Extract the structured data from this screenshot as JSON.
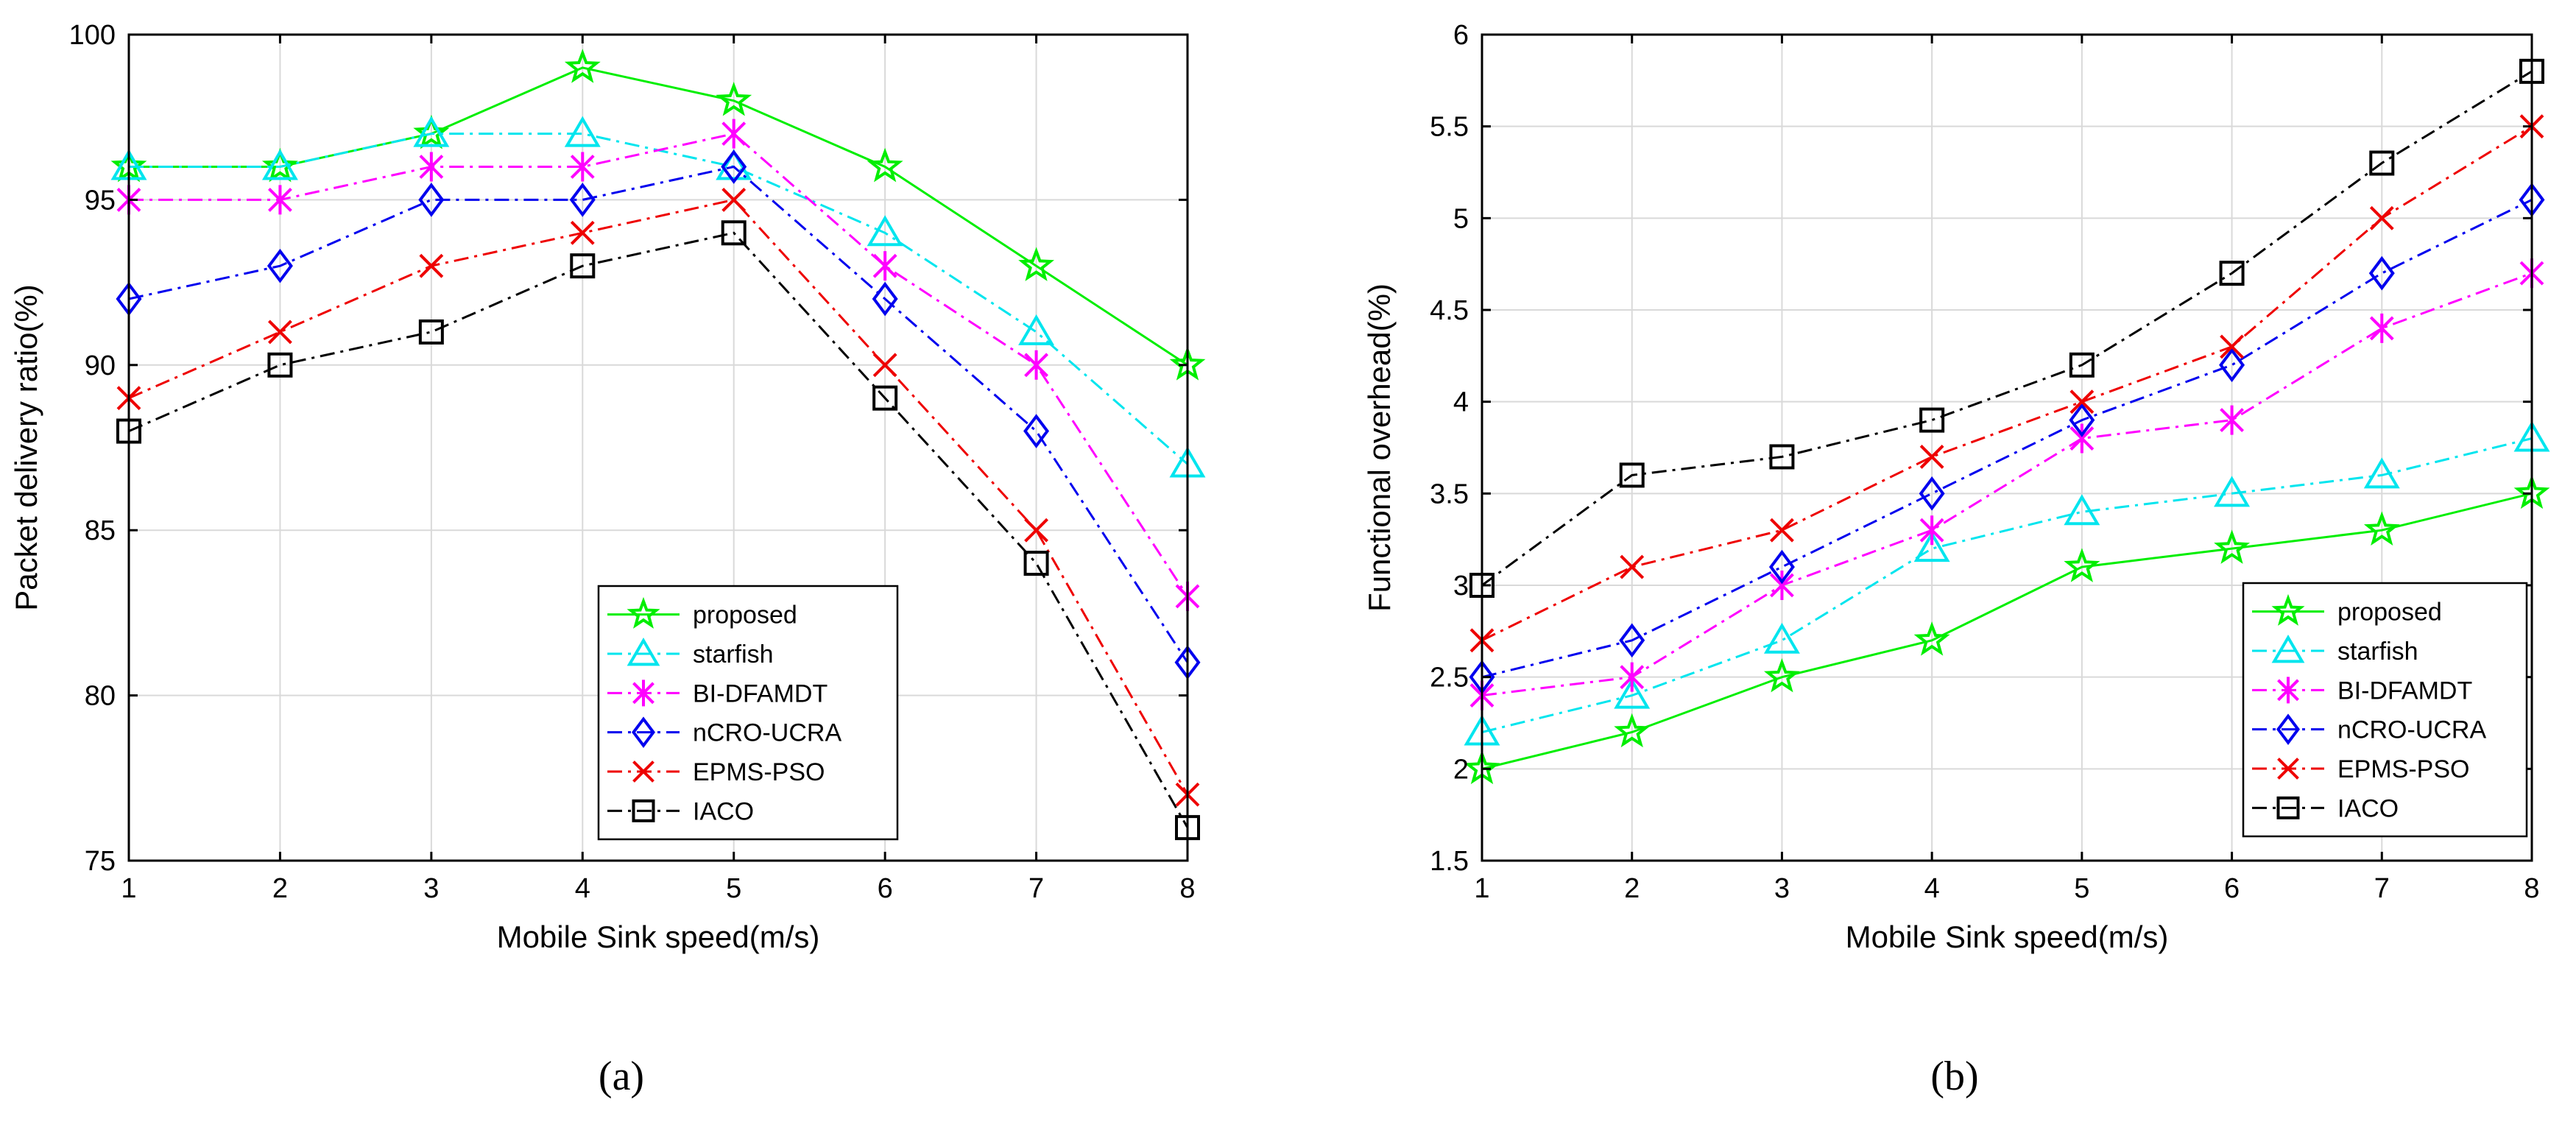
{
  "figure_captions": [
    "(a)",
    "(b)"
  ],
  "chart_data": [
    {
      "type": "line",
      "title": "",
      "xlabel": "Mobile Sink speed(m/s)",
      "ylabel": "Packet delivery ratio(%)",
      "x": [
        1,
        2,
        3,
        4,
        5,
        6,
        7,
        8
      ],
      "xlim": [
        1,
        8
      ],
      "ylim": [
        75,
        100
      ],
      "xticks": [
        1,
        2,
        3,
        4,
        5,
        6,
        7,
        8
      ],
      "yticks": [
        75,
        80,
        85,
        90,
        95,
        100
      ],
      "grid": true,
      "legend_position": "bottom-right",
      "series": [
        {
          "name": "proposed",
          "color": "#00ee00",
          "dash": "solid",
          "marker": "star",
          "values": [
            96,
            96,
            97,
            99,
            98,
            96,
            93,
            90
          ]
        },
        {
          "name": "starfish",
          "color": "#00e5ee",
          "dash": "dashdot",
          "marker": "triangle",
          "values": [
            96,
            96,
            97,
            97,
            96,
            94,
            91,
            87
          ]
        },
        {
          "name": "BI-DFAMDT",
          "color": "#ff00ff",
          "dash": "dashdot",
          "marker": "asterisk",
          "values": [
            95,
            95,
            96,
            96,
            97,
            93,
            90,
            83
          ]
        },
        {
          "name": "nCRO-UCRA",
          "color": "#0000ee",
          "dash": "dashdot",
          "marker": "diamond",
          "values": [
            92,
            93,
            95,
            95,
            96,
            92,
            88,
            81
          ]
        },
        {
          "name": "EPMS-PSO",
          "color": "#ee0000",
          "dash": "dashdot",
          "marker": "x",
          "values": [
            89,
            91,
            93,
            94,
            95,
            90,
            85,
            77
          ]
        },
        {
          "name": "IACO",
          "color": "#000000",
          "dash": "dashdot",
          "marker": "square",
          "values": [
            88,
            90,
            91,
            93,
            94,
            89,
            84,
            76
          ]
        }
      ]
    },
    {
      "type": "line",
      "title": "",
      "xlabel": "Mobile Sink speed(m/s)",
      "ylabel": "Functional overhead(%)",
      "x": [
        1,
        2,
        3,
        4,
        5,
        6,
        7,
        8
      ],
      "xlim": [
        1,
        8
      ],
      "ylim": [
        1.5,
        6
      ],
      "xticks": [
        1,
        2,
        3,
        4,
        5,
        6,
        7,
        8
      ],
      "yticks": [
        1.5,
        2,
        2.5,
        3,
        3.5,
        4,
        4.5,
        5,
        5.5,
        6
      ],
      "grid": true,
      "legend_position": "bottom-right",
      "series": [
        {
          "name": "proposed",
          "color": "#00ee00",
          "dash": "solid",
          "marker": "star",
          "values": [
            2.0,
            2.2,
            2.5,
            2.7,
            3.1,
            3.2,
            3.3,
            3.5
          ]
        },
        {
          "name": "starfish",
          "color": "#00e5ee",
          "dash": "dashdot",
          "marker": "triangle",
          "values": [
            2.2,
            2.4,
            2.7,
            3.2,
            3.4,
            3.5,
            3.6,
            3.8
          ]
        },
        {
          "name": "BI-DFAMDT",
          "color": "#ff00ff",
          "dash": "dashdot",
          "marker": "asterisk",
          "values": [
            2.4,
            2.5,
            3.0,
            3.3,
            3.8,
            3.9,
            4.4,
            4.7
          ]
        },
        {
          "name": "nCRO-UCRA",
          "color": "#0000ee",
          "dash": "dashdot",
          "marker": "diamond",
          "values": [
            2.5,
            2.7,
            3.1,
            3.5,
            3.9,
            4.2,
            4.7,
            5.1
          ]
        },
        {
          "name": "EPMS-PSO",
          "color": "#ee0000",
          "dash": "dashdot",
          "marker": "x",
          "values": [
            2.7,
            3.1,
            3.3,
            3.7,
            4.0,
            4.3,
            5.0,
            5.5
          ]
        },
        {
          "name": "IACO",
          "color": "#000000",
          "dash": "dashdot",
          "marker": "square",
          "values": [
            3.0,
            3.6,
            3.7,
            3.9,
            4.2,
            4.7,
            5.3,
            5.8
          ]
        }
      ]
    }
  ]
}
